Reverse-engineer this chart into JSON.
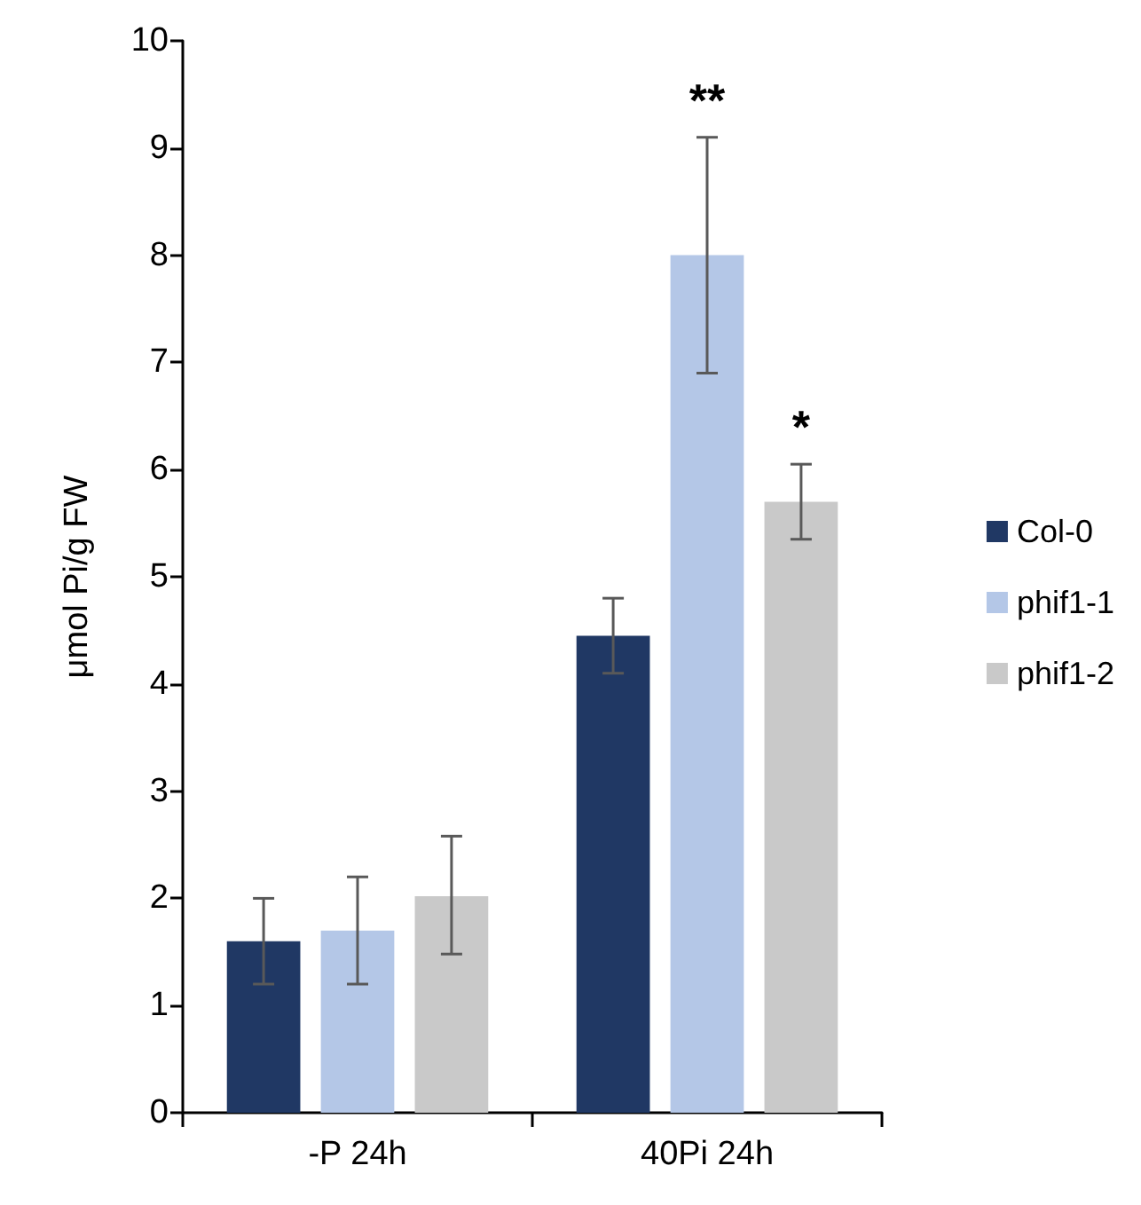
{
  "chart_data": {
    "type": "bar",
    "ylabel": "μmol Pi/g FW",
    "categories": [
      "-P 24h",
      "40Pi 24h"
    ],
    "series": [
      {
        "name": "Col-0",
        "color": "#203864",
        "values": [
          1.6,
          4.45
        ],
        "errors": [
          [
            1.2,
            2.0
          ],
          [
            4.1,
            4.8
          ]
        ]
      },
      {
        "name": "phif1-1",
        "color": "#b4c7e7",
        "values": [
          1.7,
          8.0
        ],
        "errors": [
          [
            1.2,
            2.2
          ],
          [
            6.9,
            9.1
          ]
        ]
      },
      {
        "name": "phif1-2",
        "color": "#c9c9c9",
        "values": [
          2.02,
          5.7
        ],
        "errors": [
          [
            1.48,
            2.58
          ],
          [
            5.35,
            6.05
          ]
        ]
      }
    ],
    "ylim": [
      0,
      10
    ],
    "yticks": [
      0,
      1,
      2,
      3,
      4,
      5,
      6,
      7,
      8,
      9,
      10
    ],
    "grid": false,
    "legend": "right",
    "annotations": [
      "**",
      "*"
    ]
  }
}
